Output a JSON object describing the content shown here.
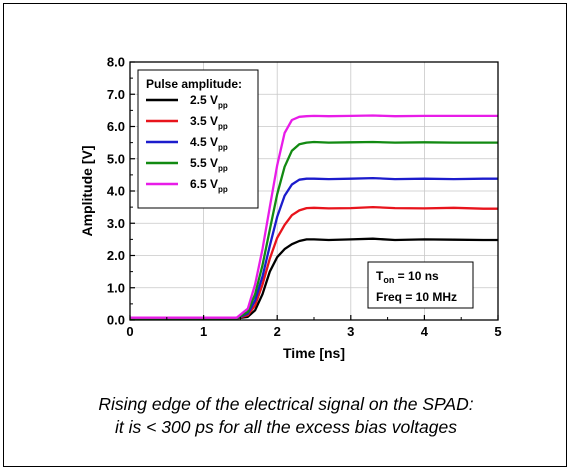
{
  "chart_data": {
    "type": "line",
    "xlabel": "Time [ns]",
    "ylabel": "Amplitude [V]",
    "xlim": [
      0,
      5
    ],
    "ylim": [
      0,
      8
    ],
    "x_ticks": [
      "0",
      "1",
      "2",
      "3",
      "4",
      "5"
    ],
    "y_ticks": [
      "0.0",
      "1.0",
      "2.0",
      "3.0",
      "4.0",
      "5.0",
      "6.0",
      "7.0",
      "8.0"
    ],
    "grid": true,
    "legend": {
      "title": "Pulse amplitude:",
      "placement": "top-left",
      "entries": [
        {
          "base": "2.5 V",
          "sub": "pp",
          "color": "#000000"
        },
        {
          "base": "3.5 V",
          "sub": "pp",
          "color": "#e8141c"
        },
        {
          "base": "4.5 V",
          "sub": "pp",
          "color": "#1c1ccc"
        },
        {
          "base": "5.5 V",
          "sub": "pp",
          "color": "#128a12"
        },
        {
          "base": "6.5 V",
          "sub": "pp",
          "color": "#e81ce8"
        }
      ]
    },
    "series": [
      {
        "name": "2.5 Vpp",
        "color": "#000000",
        "x": [
          0,
          1.45,
          1.6,
          1.7,
          1.8,
          1.9,
          2.0,
          2.1,
          2.2,
          2.3,
          2.4,
          2.5,
          2.7,
          3.0,
          3.3,
          3.6,
          4.0,
          4.4,
          4.8,
          5.0
        ],
        "y": [
          0.05,
          0.05,
          0.1,
          0.3,
          0.8,
          1.5,
          1.95,
          2.2,
          2.35,
          2.45,
          2.5,
          2.5,
          2.48,
          2.5,
          2.52,
          2.48,
          2.5,
          2.49,
          2.48,
          2.48
        ]
      },
      {
        "name": "3.5 Vpp",
        "color": "#e8141c",
        "x": [
          0,
          1.45,
          1.6,
          1.7,
          1.8,
          1.9,
          2.0,
          2.1,
          2.2,
          2.3,
          2.4,
          2.5,
          2.7,
          3.0,
          3.3,
          3.6,
          4.0,
          4.4,
          4.8,
          5.0
        ],
        "y": [
          0.05,
          0.05,
          0.15,
          0.45,
          1.1,
          1.9,
          2.55,
          2.95,
          3.25,
          3.4,
          3.47,
          3.48,
          3.46,
          3.47,
          3.5,
          3.47,
          3.46,
          3.48,
          3.45,
          3.45
        ]
      },
      {
        "name": "4.5 Vpp",
        "color": "#1c1ccc",
        "x": [
          0,
          1.45,
          1.6,
          1.7,
          1.8,
          1.9,
          2.0,
          2.1,
          2.2,
          2.3,
          2.4,
          2.5,
          2.7,
          3.0,
          3.3,
          3.6,
          4.0,
          4.4,
          4.8,
          5.0
        ],
        "y": [
          0.05,
          0.05,
          0.2,
          0.6,
          1.35,
          2.3,
          3.2,
          3.85,
          4.2,
          4.35,
          4.38,
          4.38,
          4.37,
          4.38,
          4.4,
          4.37,
          4.38,
          4.37,
          4.38,
          4.38
        ]
      },
      {
        "name": "5.5 Vpp",
        "color": "#128a12",
        "x": [
          0,
          1.45,
          1.6,
          1.7,
          1.8,
          1.9,
          2.0,
          2.1,
          2.2,
          2.3,
          2.4,
          2.5,
          2.7,
          3.0,
          3.3,
          3.6,
          4.0,
          4.4,
          4.8,
          5.0
        ],
        "y": [
          0.05,
          0.05,
          0.25,
          0.8,
          1.7,
          2.8,
          3.9,
          4.75,
          5.25,
          5.45,
          5.5,
          5.52,
          5.5,
          5.51,
          5.52,
          5.5,
          5.51,
          5.5,
          5.5,
          5.5
        ]
      },
      {
        "name": "6.5 Vpp",
        "color": "#e81ce8",
        "x": [
          0,
          1.45,
          1.6,
          1.7,
          1.8,
          1.9,
          2.0,
          2.1,
          2.2,
          2.3,
          2.4,
          2.5,
          2.7,
          3.0,
          3.3,
          3.6,
          4.0,
          4.4,
          4.8,
          5.0
        ],
        "y": [
          0.07,
          0.07,
          0.35,
          1.1,
          2.2,
          3.5,
          4.8,
          5.8,
          6.2,
          6.3,
          6.32,
          6.33,
          6.32,
          6.33,
          6.34,
          6.32,
          6.33,
          6.33,
          6.33,
          6.33
        ]
      }
    ],
    "annotation": {
      "t_base": "T",
      "t_sub": "on",
      "t_rest": " = 10 ns",
      "freq": "Freq = 10 MHz"
    }
  },
  "caption": {
    "line1": "Rising edge of the electrical signal on the SPAD:",
    "line2": "it is < 300 ps for all the excess bias voltages"
  }
}
